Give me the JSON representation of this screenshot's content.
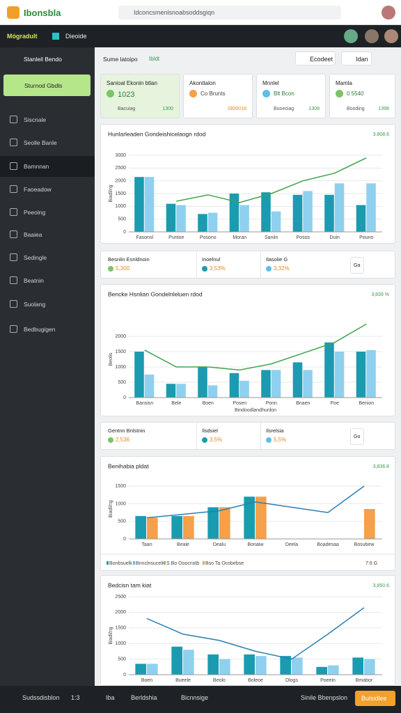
{
  "topbar": {
    "logo": "Ibonsbla",
    "search": "Idconcsmenlsnoabsoddsgiqn"
  },
  "navbar": {
    "left": "Mógradult",
    "right": "Dieoide"
  },
  "sidebar": {
    "header": "Stanleil Bendo",
    "active": "Sturnod Gbdls",
    "items": [
      "Siscnale",
      "Seolle Banle",
      "Bamnnan",
      "Faoeadow",
      "Peeoing",
      "Baaiea",
      "Sedingle",
      "Beatnin",
      "Suolang",
      "Bedbugigen"
    ]
  },
  "header": {
    "title": "Sume latoipo",
    "tag": "Ibldt",
    "select": "Ecodeet",
    "button": "Idan"
  },
  "kpis": [
    {
      "title": "Sanioal Ekonin btlan",
      "value": "1023",
      "foot": "Bacuiag",
      "foot_value": "1300"
    },
    {
      "title": "Akonttalon",
      "value": "Co Brunts",
      "foot": "",
      "foot_value": "2800018"
    },
    {
      "title": "Mnnlel",
      "value": "Blt Bcon",
      "foot": "Buoeciag",
      "foot_value": "1308"
    },
    {
      "title": "Mamla",
      "value": "0 5540",
      "foot": "Booding",
      "foot_value": "1398"
    }
  ],
  "panels": [
    {
      "title": "Hunlarleaden Gondeishicelaogn rdod",
      "side_label": "3.808.6",
      "y_label": "Biadl/ng",
      "categories": [
        "Fasonsl",
        "Puntoe",
        "Posono",
        "Moran",
        "Saniin",
        "Posos",
        "Duin",
        "Pouno"
      ],
      "bars": [
        {
          "color": "#1a9bb0",
          "values": [
            2150,
            1100,
            700,
            1500,
            1550,
            1450,
            1450,
            1050
          ]
        },
        {
          "color": "#8fd0ee",
          "values": [
            2150,
            1050,
            750,
            1050,
            800,
            1600,
            1900,
            1900
          ]
        }
      ],
      "line": {
        "color": "#3fa34d",
        "values": [
          null,
          1200,
          1450,
          1150,
          1500,
          2000,
          2300,
          2900
        ]
      },
      "ylim": [
        0,
        3000
      ],
      "yticks": [
        0,
        500,
        1000,
        1500,
        2000,
        2500,
        3000
      ]
    },
    {
      "title": "Bencke Hsnlian Gondelnleluen rdod",
      "side_label": "3,839 %",
      "y_label": "Beolis",
      "x_label": "Bindoodlandhunlon",
      "categories": [
        "Bansisn",
        "Bele",
        "Boen",
        "Posen",
        "Ponn",
        "Bnaen",
        "Poe",
        "Benion"
      ],
      "bars": [
        {
          "color": "#1a9bb0",
          "values": [
            1500,
            450,
            1000,
            800,
            900,
            1150,
            1800,
            1500
          ]
        },
        {
          "color": "#8fd0ee",
          "values": [
            750,
            450,
            400,
            550,
            900,
            900,
            1500,
            1550
          ]
        }
      ],
      "line": {
        "color": "#3fa34d",
        "values": [
          1550,
          1000,
          1000,
          900,
          1100,
          1450,
          1800,
          2400
        ]
      },
      "ylim": [
        0,
        2500
      ],
      "yticks": [
        0,
        500,
        1000,
        1500,
        2000
      ]
    },
    {
      "title": "Benihabia pldat",
      "side_label": "3,836.8",
      "y_label": "Biadl/ng",
      "categories": [
        "Taan",
        "Beaie",
        "Dealu",
        "Bonaiw",
        "Deela",
        "Boadesaa",
        "Bosubew"
      ],
      "bars": [
        {
          "color": "#1a9bb0",
          "values": [
            650,
            650,
            900,
            1200,
            null,
            null,
            null
          ]
        },
        {
          "color": "#f5a04a",
          "values": [
            600,
            650,
            900,
            1200,
            null,
            null,
            850
          ]
        }
      ],
      "line": {
        "color": "#2a7fb0",
        "values": [
          600,
          700,
          800,
          1050,
          900,
          750,
          1500
        ]
      },
      "ylim": [
        0,
        1700
      ],
      "yticks": [
        0,
        500,
        1000,
        1500
      ]
    },
    {
      "title": "Bedcisn tam kiat",
      "side_label": "3,850.6",
      "y_label": "Biadl/ng",
      "categories": [
        "Boen",
        "Bueele",
        "Beolo",
        "Boleoe",
        "Dlogs",
        "Poeein",
        "Bmabor"
      ],
      "bars": [
        {
          "color": "#1a9bb0",
          "values": [
            350,
            900,
            650,
            650,
            600,
            250,
            550
          ]
        },
        {
          "color": "#8fd0ee",
          "values": [
            350,
            800,
            500,
            600,
            550,
            300,
            500
          ]
        }
      ],
      "line": {
        "color": "#2a7fb0",
        "values": [
          1800,
          1300,
          1100,
          750,
          500,
          1300,
          2150
        ]
      },
      "ylim": [
        0,
        2500
      ],
      "yticks": [
        0,
        500,
        1000,
        1500,
        2000,
        2500
      ]
    }
  ],
  "stats": [
    [
      {
        "label": "Besnlin Esnldnoin",
        "value": "5,300"
      },
      {
        "label": "Inoelnul",
        "value": "3,53%"
      },
      {
        "label": "Ilasolie G",
        "value": "3,32%"
      },
      {
        "label": "Ga",
        "value": ""
      }
    ],
    [
      {
        "label": "Gentnn Bnlstnin",
        "value": "2,536"
      },
      {
        "label": "Ilsdsiel",
        "value": "3,5%"
      },
      {
        "label": "Ilsrelsia",
        "value": "5,5%"
      },
      {
        "label": "Go",
        "value": ""
      }
    ]
  ],
  "legend_row": [
    "Bonbsuelk",
    "Bnnclnsuceliu",
    "S Bo Ooocnstb",
    "Bso Ta Ocobebse",
    "7:6 G"
  ],
  "bottombar": {
    "left": "Sudssdisblon",
    "count": "1:3",
    "a": "Iba",
    "b": "Berldshia",
    "c": "Bicnnsige",
    "d": "Sinile Bbenpslon",
    "button": "Bulsidlee"
  }
}
